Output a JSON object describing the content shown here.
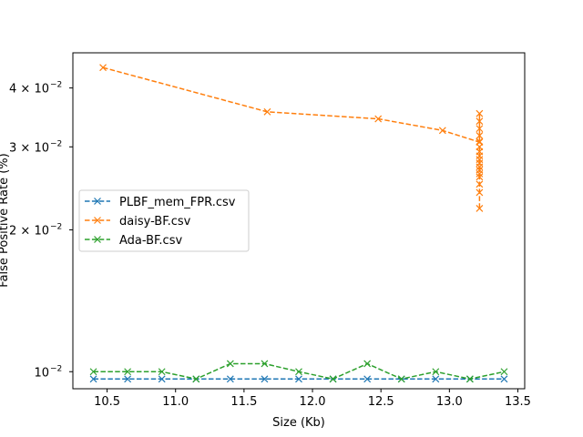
{
  "chart_data": {
    "type": "line",
    "title": "",
    "xlabel": "Size (Kb)",
    "ylabel": "False Positive Rate (%)",
    "xlim": [
      10.25,
      13.55
    ],
    "ylim": [
      0.0092,
      0.0475
    ],
    "yscale": "log",
    "grid": false,
    "legend_position": "center-left",
    "x_ticks": [
      {
        "value": 10.5,
        "label": "10.5"
      },
      {
        "value": 11.0,
        "label": "11.0"
      },
      {
        "value": 11.5,
        "label": "11.5"
      },
      {
        "value": 12.0,
        "label": "12.0"
      },
      {
        "value": 12.5,
        "label": "12.5"
      },
      {
        "value": 13.0,
        "label": "13.0"
      },
      {
        "value": 13.5,
        "label": "13.5"
      }
    ],
    "y_ticks": [
      {
        "value": 0.01,
        "label": "10",
        "exp": "−2"
      },
      {
        "value": 0.02,
        "label": "2 × 10",
        "exp": "−2"
      },
      {
        "value": 0.03,
        "label": "3 × 10",
        "exp": "−2"
      },
      {
        "value": 0.04,
        "label": "4 × 10",
        "exp": "−2"
      }
    ],
    "series": [
      {
        "name": "PLBF_mem_FPR.csv",
        "color": "#1f77b4",
        "x": [
          10.4,
          10.65,
          10.9,
          11.15,
          11.4,
          11.65,
          11.9,
          12.15,
          12.4,
          12.65,
          12.9,
          13.15,
          13.4
        ],
        "y": [
          0.00965,
          0.00965,
          0.00965,
          0.00965,
          0.00965,
          0.00965,
          0.00965,
          0.00965,
          0.00965,
          0.00965,
          0.00965,
          0.00965,
          0.00965
        ]
      },
      {
        "name": "daisy-BF.csv",
        "color": "#ff7f0e",
        "x": [
          10.47,
          11.67,
          12.48,
          12.95,
          13.22,
          13.22,
          13.22,
          13.22,
          13.22,
          13.22,
          13.22,
          13.22,
          13.22,
          13.22,
          13.22,
          13.22,
          13.22,
          13.22,
          13.22,
          13.22,
          13.22,
          13.22
        ],
        "y": [
          0.0442,
          0.0356,
          0.0344,
          0.0325,
          0.0307,
          0.0353,
          0.034,
          0.0328,
          0.0317,
          0.0308,
          0.03,
          0.0293,
          0.0287,
          0.0282,
          0.0277,
          0.0272,
          0.0268,
          0.0263,
          0.0259,
          0.025,
          0.024,
          0.0222
        ]
      },
      {
        "name": "Ada-BF.csv",
        "color": "#2ca02c",
        "x": [
          10.4,
          10.65,
          10.9,
          11.15,
          11.4,
          11.65,
          11.9,
          12.15,
          12.4,
          12.65,
          12.9,
          13.15,
          13.4
        ],
        "y": [
          0.01,
          0.01,
          0.01,
          0.00965,
          0.0104,
          0.0104,
          0.01,
          0.00965,
          0.0104,
          0.00965,
          0.01,
          0.00965,
          0.01
        ]
      }
    ]
  }
}
